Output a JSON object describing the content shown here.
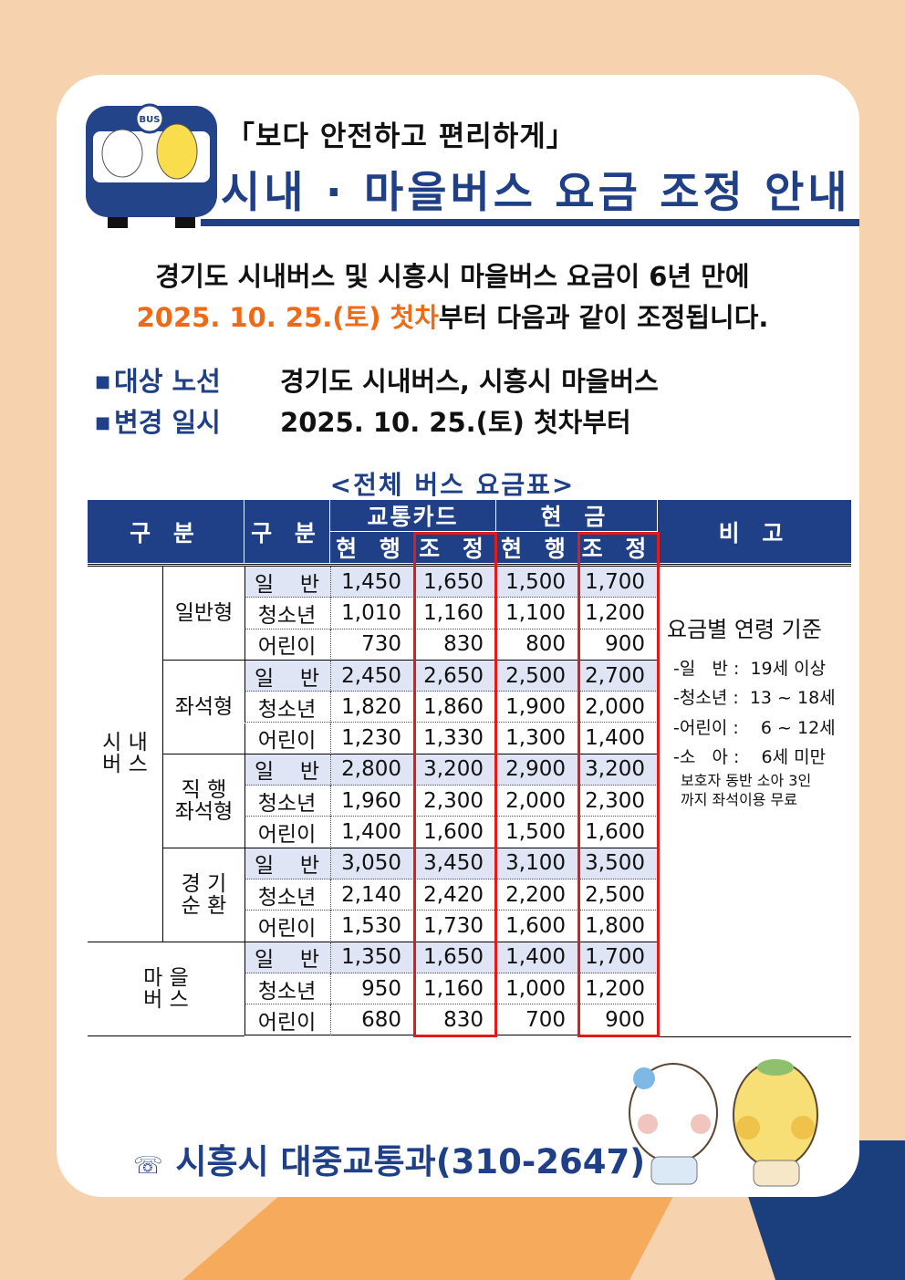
{
  "header": {
    "subtitle": "「보다 안전하고 편리하게」",
    "title": "시내 · 마을버스 요금 조정 안내",
    "logo_text": "BUS"
  },
  "intro": {
    "line1": "경기도 시내버스 및 시흥시 마을버스 요금이 6년 만에",
    "line2_highlight": "2025. 10. 25.(토) 첫차",
    "line2_rest": "부터 다음과 같이 조정됩니다."
  },
  "info": [
    {
      "key": "대상 노선",
      "value": "경기도 시내버스, 시흥시 마을버스"
    },
    {
      "key": "변경 일시",
      "value": "2025. 10. 25.(토) 첫차부터"
    }
  ],
  "table": {
    "title": "<전체 버스 요금표>",
    "headers": {
      "category": "구 분",
      "type": "구 분",
      "card": "교통카드",
      "cash": "현 금",
      "current": "현 행",
      "adjusted": "조 정",
      "remarks": "비 고"
    },
    "groups": [
      {
        "label": "시 내\n버 스"
      },
      {
        "label": "마 을\n버 스"
      }
    ],
    "types": [
      "일반형",
      "좌석형",
      "직 행\n좌석형",
      "경 기\n순 환"
    ],
    "rows": [
      {
        "age": "일 반",
        "card_cur": "1,450",
        "card_new": "1,650",
        "cash_cur": "1,500",
        "cash_new": "1,700"
      },
      {
        "age": "청소년",
        "card_cur": "1,010",
        "card_new": "1,160",
        "cash_cur": "1,100",
        "cash_new": "1,200"
      },
      {
        "age": "어린이",
        "card_cur": "730",
        "card_new": "830",
        "cash_cur": "800",
        "cash_new": "900"
      },
      {
        "age": "일 반",
        "card_cur": "2,450",
        "card_new": "2,650",
        "cash_cur": "2,500",
        "cash_new": "2,700"
      },
      {
        "age": "청소년",
        "card_cur": "1,820",
        "card_new": "1,860",
        "cash_cur": "1,900",
        "cash_new": "2,000"
      },
      {
        "age": "어린이",
        "card_cur": "1,230",
        "card_new": "1,330",
        "cash_cur": "1,300",
        "cash_new": "1,400"
      },
      {
        "age": "일 반",
        "card_cur": "2,800",
        "card_new": "3,200",
        "cash_cur": "2,900",
        "cash_new": "3,200"
      },
      {
        "age": "청소년",
        "card_cur": "1,960",
        "card_new": "2,300",
        "cash_cur": "2,000",
        "cash_new": "2,300"
      },
      {
        "age": "어린이",
        "card_cur": "1,400",
        "card_new": "1,600",
        "cash_cur": "1,500",
        "cash_new": "1,600"
      },
      {
        "age": "일 반",
        "card_cur": "3,050",
        "card_new": "3,450",
        "cash_cur": "3,100",
        "cash_new": "3,500"
      },
      {
        "age": "청소년",
        "card_cur": "2,140",
        "card_new": "2,420",
        "cash_cur": "2,200",
        "cash_new": "2,500"
      },
      {
        "age": "어린이",
        "card_cur": "1,530",
        "card_new": "1,730",
        "cash_cur": "1,600",
        "cash_new": "1,800"
      },
      {
        "age": "일 반",
        "card_cur": "1,350",
        "card_new": "1,650",
        "cash_cur": "1,400",
        "cash_new": "1,700"
      },
      {
        "age": "청소년",
        "card_cur": "950",
        "card_new": "1,160",
        "cash_cur": "1,000",
        "cash_new": "1,200"
      },
      {
        "age": "어린이",
        "card_cur": "680",
        "card_new": "830",
        "cash_cur": "700",
        "cash_new": "900"
      }
    ],
    "remarks": {
      "title": "요금별 연령 기준",
      "items": [
        "-일   반 :  19세 이상",
        "-청소년 :  13 ~ 18세",
        "-어린이 :    6 ~ 12세",
        "-소   아 :    6세 미만"
      ],
      "extra1": "보호자 동반 소아 3인",
      "extra2": "까지 좌석이용 무료"
    }
  },
  "contact": {
    "icon": "telephone-icon",
    "text": "시흥시 대중교통과(310-2647)"
  },
  "colors": {
    "navy": "#1f3f86",
    "orange": "#ef6a16",
    "red": "#e01b1b",
    "shade": "#dfe5f4"
  }
}
